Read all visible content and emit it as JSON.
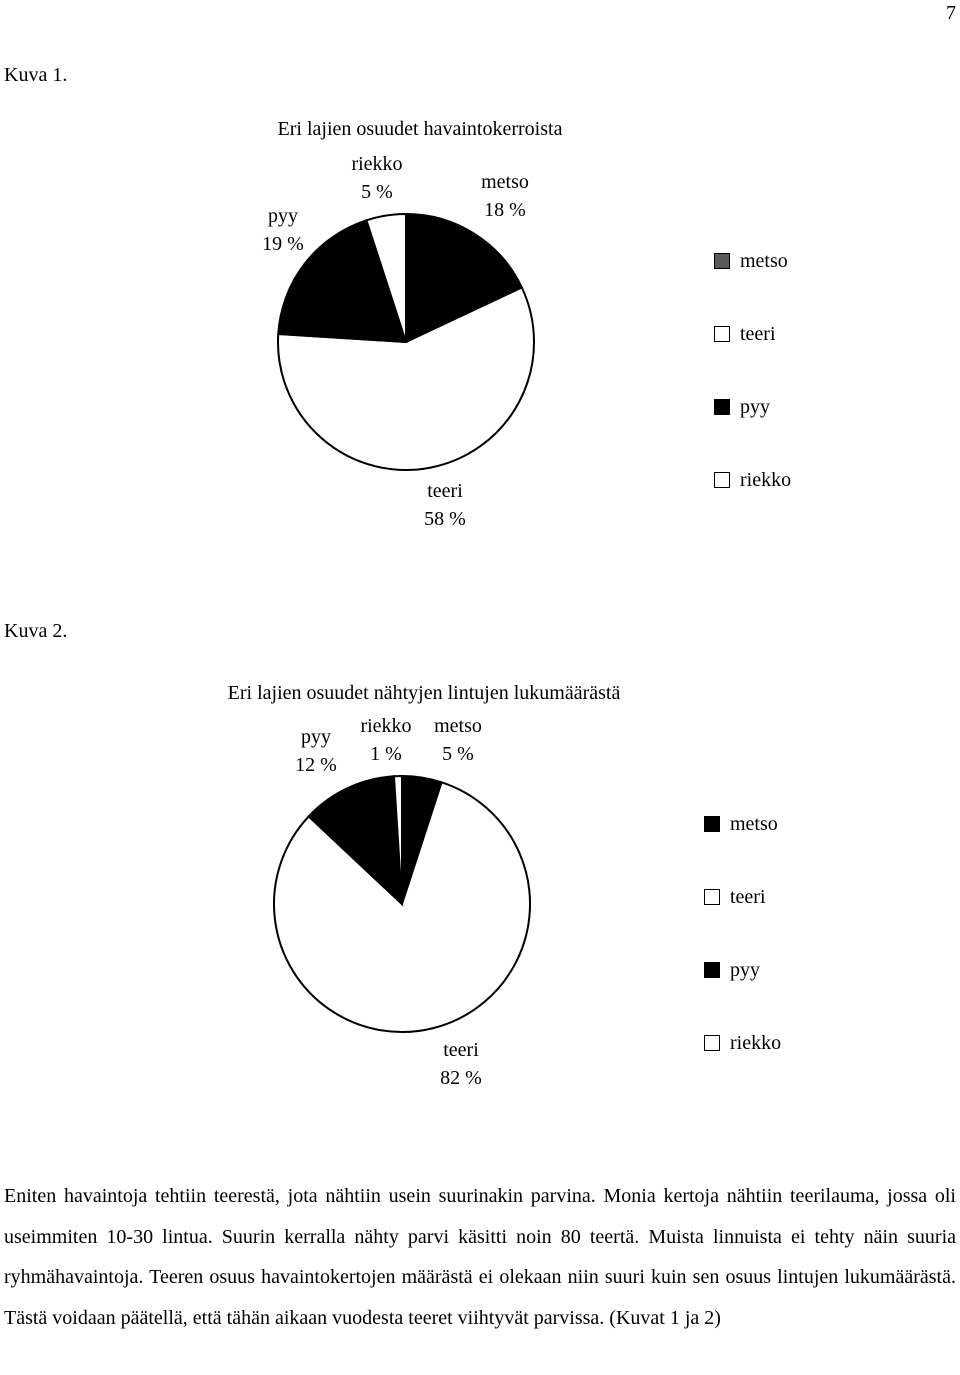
{
  "page_number": "7",
  "chart_data": [
    {
      "caption": "Kuva 1.",
      "type": "pie",
      "title": "Eri lajien osuudet havaintokerroista",
      "categories": [
        "metso",
        "teeri",
        "pyy",
        "riekko"
      ],
      "values": [
        18,
        58,
        19,
        5
      ],
      "slice_labels": [
        {
          "name": "metso",
          "value": "18 %"
        },
        {
          "name": "teeri",
          "value": "58 %"
        },
        {
          "name": "pyy",
          "value": "19 %"
        },
        {
          "name": "riekko",
          "value": "5 %"
        }
      ],
      "colors": {
        "metso": "#000000",
        "teeri": "#ffffff",
        "pyy": "#000000",
        "riekko": "#ffffff"
      },
      "legend": {
        "placement": "right",
        "items": [
          {
            "label": "metso",
            "swatch": "#5a5a5a"
          },
          {
            "label": "teeri",
            "swatch": "#ffffff"
          },
          {
            "label": "pyy",
            "swatch": "#000000"
          },
          {
            "label": "riekko",
            "swatch": "#ffffff"
          }
        ]
      }
    },
    {
      "caption": "Kuva 2.",
      "type": "pie",
      "title": "Eri lajien osuudet nähtyjen lintujen lukumäärästä",
      "categories": [
        "metso",
        "teeri",
        "pyy",
        "riekko"
      ],
      "values": [
        5,
        82,
        12,
        1
      ],
      "slice_labels": [
        {
          "name": "metso",
          "value": "5 %"
        },
        {
          "name": "teeri",
          "value": "82 %"
        },
        {
          "name": "pyy",
          "value": "12 %"
        },
        {
          "name": "riekko",
          "value": "1 %"
        }
      ],
      "colors": {
        "metso": "#000000",
        "teeri": "#ffffff",
        "pyy": "#000000",
        "riekko": "#ffffff"
      },
      "legend": {
        "placement": "right",
        "items": [
          {
            "label": "metso",
            "swatch": "#000000"
          },
          {
            "label": "teeri",
            "swatch": "#ffffff"
          },
          {
            "label": "pyy",
            "swatch": "#000000"
          },
          {
            "label": "riekko",
            "swatch": "#ffffff"
          }
        ]
      }
    }
  ],
  "body_text": "Eniten havaintoja tehtiin teerestä, jota nähtiin usein suurinakin parvina. Monia kertoja nähtiin teerilauma, jossa oli useimmiten 10-30 lintua. Suurin kerralla nähty parvi käsitti noin 80 teertä. Muista linnuista ei tehty näin suuria ryhmähavaintoja. Teeren osuus havaintokertojen määrästä ei olekaan niin suuri kuin sen osuus lintujen lukumäärästä. Tästä voidaan päätellä, että tähän aikaan vuodesta teeret viihtyvät parvissa. (Kuvat 1 ja 2)"
}
